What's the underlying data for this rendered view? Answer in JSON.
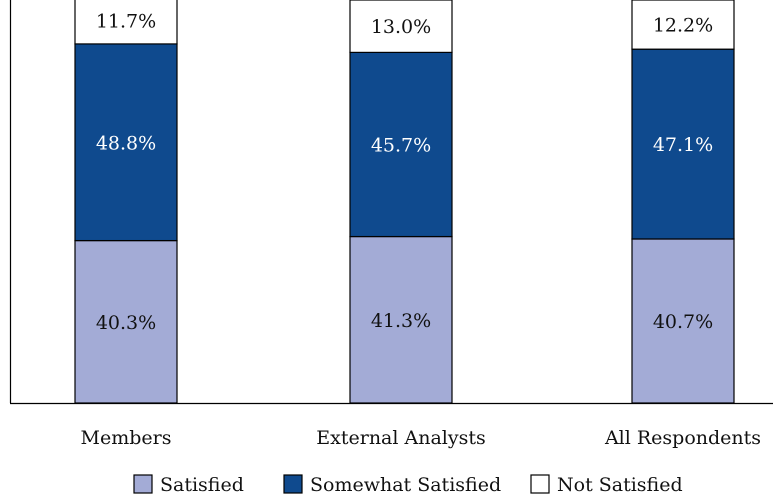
{
  "chart_data": {
    "type": "bar",
    "stacked": true,
    "percent_stacked": true,
    "categories": [
      "Members",
      "External Analysts",
      "All Respondents"
    ],
    "series": [
      {
        "name": "Satisfied",
        "values": [
          40.3,
          41.3,
          40.7
        ],
        "labels": [
          "40.3%",
          "41.3%",
          "40.7%"
        ],
        "color": "#a3abd6",
        "label_color": "#111111"
      },
      {
        "name": "Somewhat Satisfied",
        "values": [
          48.8,
          45.7,
          47.1
        ],
        "labels": [
          "48.8%",
          "45.7%",
          "47.1%"
        ],
        "color": "#0f4a8e",
        "label_color": "#ffffff"
      },
      {
        "name": "Not Satisfied",
        "values": [
          11.7,
          13.0,
          12.2
        ],
        "labels": [
          "11.7%",
          "13.0%",
          "12.2%"
        ],
        "color": "#ffffff",
        "label_color": "#111111"
      }
    ],
    "ylim": [
      0,
      100
    ],
    "grid": false,
    "legend": "bottom"
  }
}
